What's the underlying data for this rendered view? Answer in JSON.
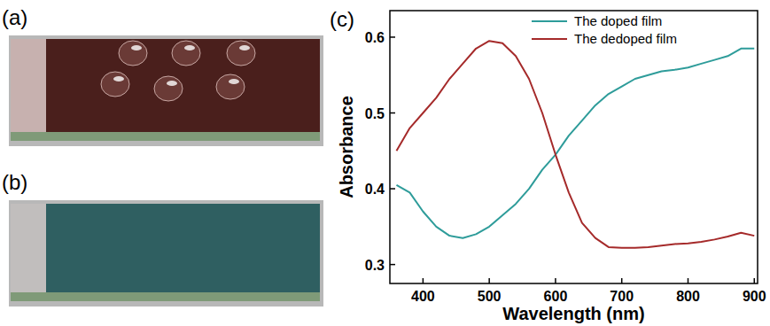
{
  "photos": [
    {
      "label": "(a)",
      "color": "#4a1f1c"
    },
    {
      "label": "(b)",
      "color": "#2f5f61"
    }
  ],
  "chart_data": {
    "type": "line",
    "panel_label": "(c)",
    "x_label": "Wavelength (nm)",
    "y_label": "Absorbance",
    "x": [
      360,
      380,
      400,
      420,
      440,
      460,
      480,
      500,
      520,
      540,
      560,
      580,
      600,
      620,
      640,
      660,
      680,
      700,
      720,
      740,
      760,
      780,
      800,
      820,
      840,
      860,
      880,
      900
    ],
    "series": [
      {
        "name": "The doped film",
        "color": "#2e9c9a",
        "values": [
          0.405,
          0.395,
          0.37,
          0.35,
          0.338,
          0.335,
          0.34,
          0.35,
          0.365,
          0.38,
          0.4,
          0.425,
          0.445,
          0.47,
          0.49,
          0.51,
          0.525,
          0.535,
          0.545,
          0.55,
          0.555,
          0.557,
          0.56,
          0.565,
          0.57,
          0.575,
          0.585,
          0.585
        ]
      },
      {
        "name": "The dedoped film",
        "color": "#a52a2a",
        "values": [
          0.45,
          0.48,
          0.5,
          0.52,
          0.545,
          0.565,
          0.585,
          0.595,
          0.592,
          0.575,
          0.545,
          0.5,
          0.445,
          0.395,
          0.355,
          0.335,
          0.323,
          0.322,
          0.322,
          0.323,
          0.325,
          0.327,
          0.328,
          0.33,
          0.333,
          0.337,
          0.342,
          0.338
        ]
      }
    ],
    "xlim": [
      350,
      905
    ],
    "xticks": [
      400,
      500,
      600,
      700,
      800,
      900
    ],
    "ylim": [
      0.275,
      0.635
    ],
    "yticks": [
      0.3,
      0.4,
      0.5,
      0.6
    ],
    "grid": false,
    "legend": "upper right"
  }
}
